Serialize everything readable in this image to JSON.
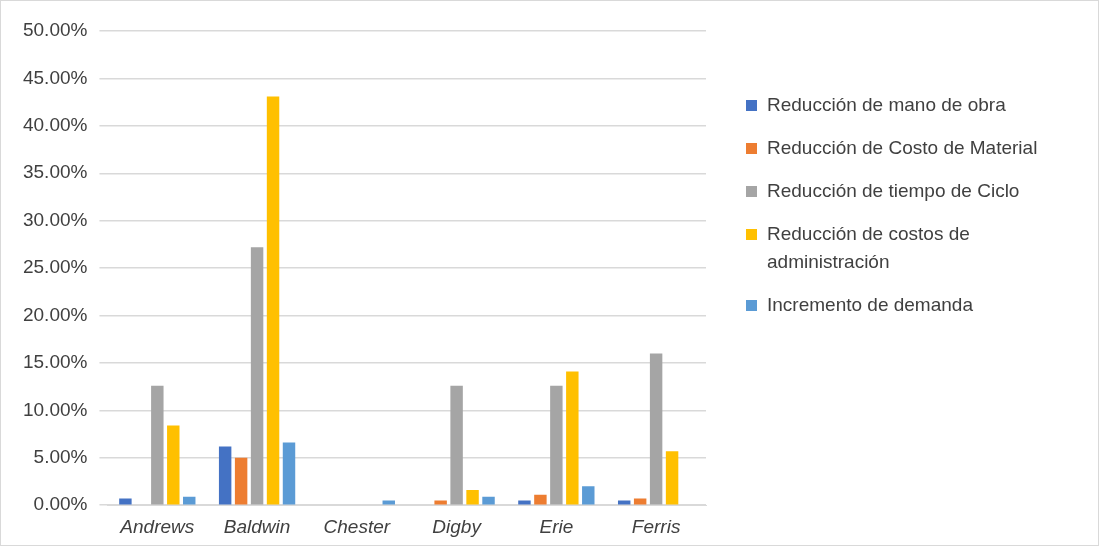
{
  "chart_data": {
    "type": "bar",
    "categories": [
      "Andrews",
      "Baldwin",
      "Chester",
      "Digby",
      "Erie",
      "Ferris"
    ],
    "series": [
      {
        "name": "Reducción de mano de obra",
        "color": "#4472c4",
        "values": [
          0.7,
          6.2,
          0,
          0,
          0.5,
          0.5
        ]
      },
      {
        "name": "Reducción de Costo de Material",
        "color": "#ed7d31",
        "values": [
          0,
          5.0,
          0,
          0.5,
          1.1,
          0.7
        ]
      },
      {
        "name": "Reducción de tiempo de Ciclo",
        "color": "#a5a5a5",
        "values": [
          12.6,
          27.2,
          0,
          12.6,
          12.6,
          16.0
        ]
      },
      {
        "name": "Reducción de costos de administración",
        "color": "#ffc000",
        "values": [
          8.4,
          43.1,
          0,
          1.6,
          14.1,
          5.7
        ]
      },
      {
        "name": "Incremento de demanda",
        "color": "#5b9bd5",
        "values": [
          0.9,
          6.6,
          0.5,
          0.9,
          2.0,
          0
        ]
      }
    ],
    "ylim": [
      0,
      50
    ],
    "yticks": [
      {
        "value": 0,
        "label": "0.00%"
      },
      {
        "value": 5,
        "label": "5.00%"
      },
      {
        "value": 10,
        "label": "10.00%"
      },
      {
        "value": 15,
        "label": "15.00%"
      },
      {
        "value": 20,
        "label": "20.00%"
      },
      {
        "value": 25,
        "label": "25.00%"
      },
      {
        "value": 30,
        "label": "30.00%"
      },
      {
        "value": 35,
        "label": "35.00%"
      },
      {
        "value": 40,
        "label": "40.00%"
      },
      {
        "value": 45,
        "label": "45.00%"
      },
      {
        "value": 50,
        "label": "50.00%"
      }
    ],
    "grid": "y",
    "legend": "right"
  }
}
